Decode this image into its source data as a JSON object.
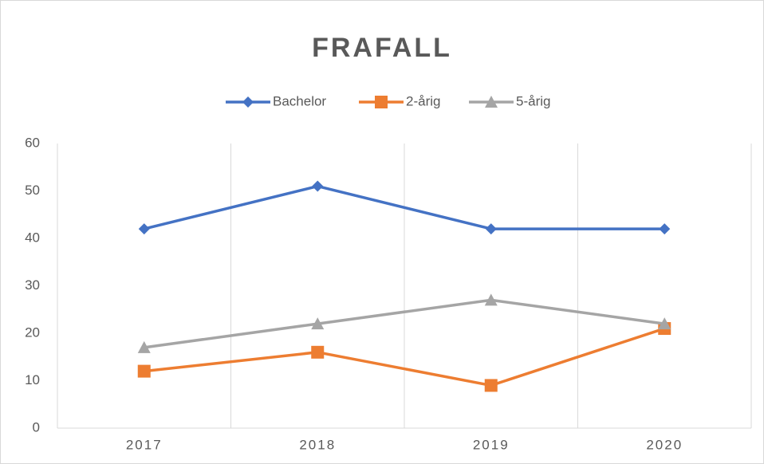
{
  "chart_data": {
    "type": "line",
    "title": "FRAFALL",
    "categories": [
      "2017",
      "2018",
      "2019",
      "2020"
    ],
    "series": [
      {
        "name": "Bachelor",
        "color": "#4472c4",
        "marker": "diamond",
        "values": [
          42,
          51,
          42,
          42
        ]
      },
      {
        "name": "2-årig",
        "color": "#ed7d31",
        "marker": "square",
        "values": [
          12,
          16,
          9,
          21
        ]
      },
      {
        "name": "5-årig",
        "color": "#a5a5a5",
        "marker": "triangle",
        "values": [
          17,
          22,
          27,
          22
        ]
      }
    ],
    "ylim": [
      0,
      60
    ],
    "yticks": [
      0,
      10,
      20,
      30,
      40,
      50,
      60
    ],
    "grid": "x",
    "legend": "top"
  }
}
